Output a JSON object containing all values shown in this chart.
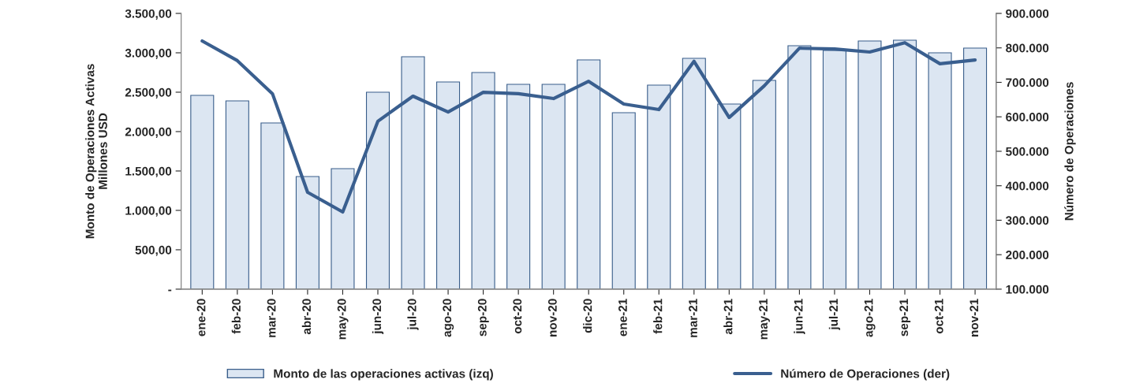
{
  "chart_data": {
    "type": "bar",
    "categories": [
      "ene-20",
      "feb-20",
      "mar-20",
      "abr-20",
      "may-20",
      "jun-20",
      "jul-20",
      "ago-20",
      "sep-20",
      "oct-20",
      "nov-20",
      "dic-20",
      "ene-21",
      "feb-21",
      "mar-21",
      "abr-21",
      "may-21",
      "jun-21",
      "jul-21",
      "ago-21",
      "sep-21",
      "oct-21",
      "nov-21"
    ],
    "series": [
      {
        "name": "Monto de las operaciones activas (izq)",
        "color": "#dce6f2",
        "values": [
          2460,
          2390,
          2110,
          1430,
          1530,
          2500,
          2950,
          2630,
          2750,
          2600,
          2600,
          2910,
          2240,
          2590,
          2930,
          2350,
          2650,
          3090,
          3030,
          3150,
          3160,
          3000,
          3060
        ]
      },
      {
        "name": "Número de Operaciones (der)",
        "type": "line",
        "axis": "y2",
        "color": "#3a5f8f",
        "values": [
          820000,
          763000,
          667000,
          381000,
          324000,
          587000,
          660000,
          614000,
          671000,
          667000,
          653000,
          703000,
          637000,
          621000,
          761000,
          598000,
          690000,
          799000,
          797000,
          788000,
          815000,
          754000,
          765000
        ]
      }
    ],
    "ylabel": "Monto de Operaciones Activas\nMillones USD",
    "y2label": "Número de Operaciones",
    "ylim": [
      0,
      3500
    ],
    "yticks": [
      {
        "value": 0,
        "label": "-"
      },
      {
        "value": 500,
        "label": "500,00"
      },
      {
        "value": 1000,
        "label": "1.000,00"
      },
      {
        "value": 1500,
        "label": "1.500,00"
      },
      {
        "value": 2000,
        "label": "2.000,00"
      },
      {
        "value": 2500,
        "label": "2.500,00"
      },
      {
        "value": 3000,
        "label": "3.000,00"
      },
      {
        "value": 3500,
        "label": "3.500,00"
      }
    ],
    "y2lim": [
      100000,
      900000
    ],
    "y2ticks": [
      {
        "value": 100000,
        "label": "100.000"
      },
      {
        "value": 200000,
        "label": "200.000"
      },
      {
        "value": 300000,
        "label": "300.000"
      },
      {
        "value": 400000,
        "label": "400.000"
      },
      {
        "value": 500000,
        "label": "500.000"
      },
      {
        "value": 600000,
        "label": "600.000"
      },
      {
        "value": 700000,
        "label": "700.000"
      },
      {
        "value": 800000,
        "label": "800.000"
      },
      {
        "value": 900000,
        "label": "900.000"
      }
    ],
    "legend": "bottom",
    "grid": false
  }
}
